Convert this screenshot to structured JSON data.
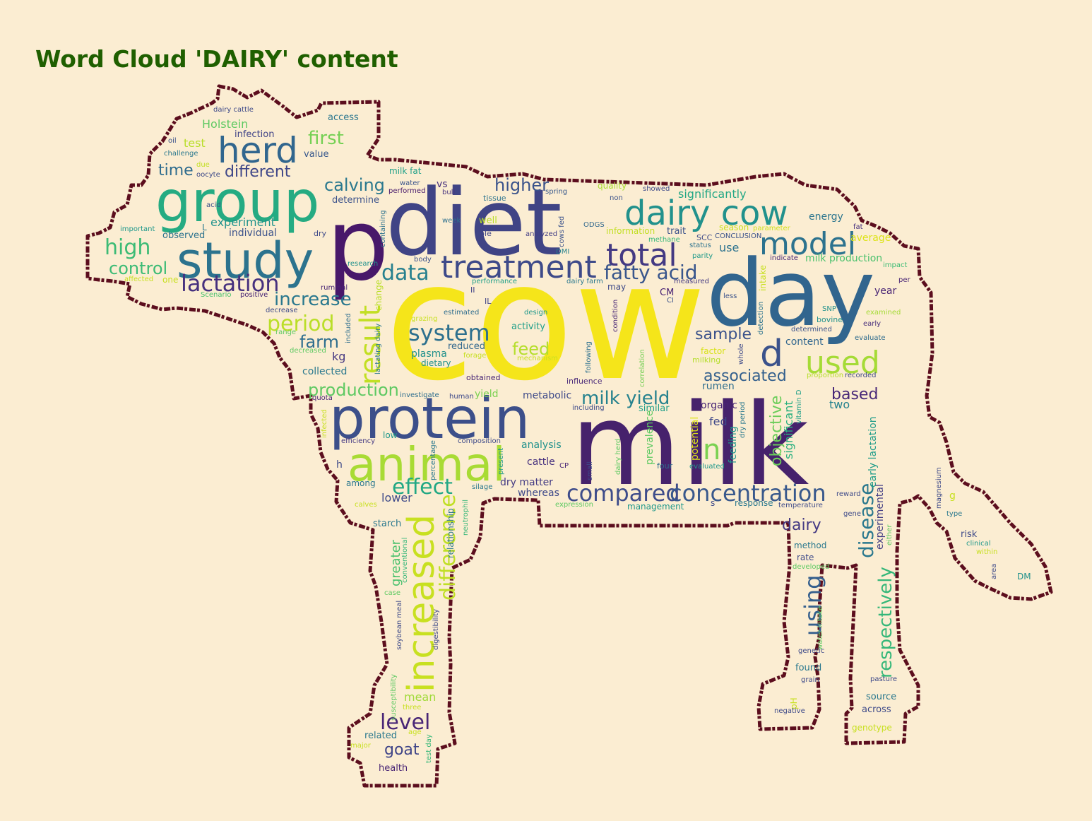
{
  "title": "Word Cloud 'DAIRY' content",
  "colors": {
    "background": "#FBEDD2",
    "title": "#1F5F00",
    "outline": "#5C0E1E",
    "palette": "viridis"
  },
  "words": [
    {
      "text": "cow",
      "color": "#F5E51A"
    },
    {
      "text": "milk",
      "color": "#46226C"
    },
    {
      "text": "diet",
      "color": "#404485"
    },
    {
      "text": "day",
      "color": "#31658E"
    },
    {
      "text": "p",
      "color": "#48186A"
    },
    {
      "text": "protein",
      "color": "#3C4F8A"
    },
    {
      "text": "group",
      "color": "#25AB82"
    },
    {
      "text": "study",
      "color": "#2C738E"
    },
    {
      "text": "animal",
      "color": "#A8DB34"
    },
    {
      "text": "treatment",
      "color": "#3E4A89"
    },
    {
      "text": "dairy cow",
      "color": "#21918C"
    },
    {
      "text": "increased",
      "color": "#C8E020"
    },
    {
      "text": "total",
      "color": "#443A83"
    },
    {
      "text": "model",
      "color": "#2C728E"
    },
    {
      "text": "result",
      "color": "#C2DF23"
    },
    {
      "text": "herd",
      "color": "#31668E"
    },
    {
      "text": "d",
      "color": "#3B528B"
    },
    {
      "text": "used",
      "color": "#A5DB36"
    },
    {
      "text": "compared",
      "color": "#3E4C8A"
    },
    {
      "text": "concentration",
      "color": "#38588C"
    },
    {
      "text": "system",
      "color": "#2D708E"
    },
    {
      "text": "lactation",
      "color": "#46307E"
    },
    {
      "text": "effect",
      "color": "#22A884"
    },
    {
      "text": "data",
      "color": "#27808E"
    },
    {
      "text": "period",
      "color": "#BADE28"
    },
    {
      "text": "fatty acid",
      "color": "#39568C"
    },
    {
      "text": "level",
      "color": "#482576"
    },
    {
      "text": "n",
      "color": "#7AD151"
    },
    {
      "text": "high",
      "color": "#3CBB75"
    },
    {
      "text": "increase",
      "color": "#2A788E"
    },
    {
      "text": "milk yield",
      "color": "#26828E"
    },
    {
      "text": "difference",
      "color": "#C0DF25"
    },
    {
      "text": "respectively",
      "color": "#35B779"
    },
    {
      "text": "using",
      "color": "#355F8D"
    },
    {
      "text": "disease",
      "color": "#2A788E"
    },
    {
      "text": "production",
      "color": "#5EC962"
    },
    {
      "text": "calving",
      "color": "#2A788E"
    },
    {
      "text": "control",
      "color": "#3CBB75"
    },
    {
      "text": "time",
      "color": "#2F6C8E"
    },
    {
      "text": "different",
      "color": "#3F4788"
    },
    {
      "text": "first",
      "color": "#75D054"
    },
    {
      "text": "higher",
      "color": "#3A538B"
    },
    {
      "text": "sample",
      "color": "#3B528B"
    },
    {
      "text": "farm",
      "color": "#2E6E8E"
    },
    {
      "text": "feed",
      "color": "#B5DE2B"
    },
    {
      "text": "dairy",
      "color": "#443983"
    },
    {
      "text": "associated",
      "color": "#34608D"
    },
    {
      "text": "based",
      "color": "#482878"
    },
    {
      "text": "objective",
      "color": "#6CCD5A"
    },
    {
      "text": "significant",
      "color": "#2BB07F"
    },
    {
      "text": "goat",
      "color": "#404588"
    },
    {
      "text": "mean",
      "color": "#A0DA39"
    },
    {
      "text": "greater",
      "color": "#4AC16D"
    },
    {
      "text": "significantly",
      "color": "#22A785"
    },
    {
      "text": "Holstein",
      "color": "#5EC962"
    },
    {
      "text": "experiment",
      "color": "#20928C"
    },
    {
      "text": "early lactation",
      "color": "#1E9C89"
    },
    {
      "text": "experimental",
      "color": "#433E85"
    },
    {
      "text": "analysis",
      "color": "#21918C"
    },
    {
      "text": "cattle",
      "color": "#46307E"
    },
    {
      "text": "lower",
      "color": "#3E4A89"
    },
    {
      "text": "dry matter",
      "color": "#443B84"
    },
    {
      "text": "whereas",
      "color": "#3E4989"
    },
    {
      "text": "use",
      "color": "#2C728E"
    },
    {
      "text": "rumen",
      "color": "#2E6D8E"
    },
    {
      "text": "organic",
      "color": "#482475"
    },
    {
      "text": "fed",
      "color": "#3F4889"
    },
    {
      "text": "feeding",
      "color": "#1F988B"
    },
    {
      "text": "potential",
      "color": "#DDE318"
    },
    {
      "text": "prevalence",
      "color": "#5EC962"
    },
    {
      "text": "two",
      "color": "#26828E"
    },
    {
      "text": "content",
      "color": "#31668E"
    },
    {
      "text": "energy",
      "color": "#2B758E"
    },
    {
      "text": "average",
      "color": "#DDE318"
    },
    {
      "text": "milk production",
      "color": "#4AC16D"
    },
    {
      "text": "year",
      "color": "#482475"
    },
    {
      "text": "collected",
      "color": "#2A788E"
    },
    {
      "text": "production_kg",
      "label": "kg",
      "color": "#453781"
    },
    {
      "text": "plasma",
      "color": "#21918C"
    },
    {
      "text": "dietary",
      "color": "#21918C"
    },
    {
      "text": "reduced",
      "color": "#31688E"
    },
    {
      "text": "activity",
      "color": "#1F9E89"
    },
    {
      "text": "metabolic",
      "color": "#3E4A89"
    },
    {
      "text": "yield",
      "color": "#7AD151"
    },
    {
      "text": "similar",
      "color": "#1F9E89"
    },
    {
      "text": "individual",
      "color": "#3B528B"
    },
    {
      "text": "observed",
      "color": "#2C728E"
    },
    {
      "text": "access",
      "color": "#2A768E"
    },
    {
      "text": "infection",
      "color": "#414487"
    },
    {
      "text": "value",
      "color": "#38588C"
    },
    {
      "text": "test",
      "color": "#B8DE29"
    },
    {
      "text": "determine",
      "color": "#3B528B"
    },
    {
      "text": "quality",
      "color": "#AADC32"
    },
    {
      "text": "showed",
      "color": "#3E4A89"
    },
    {
      "text": "milk fat",
      "color": "#1FA088"
    },
    {
      "text": "water",
      "color": "#3A548C"
    },
    {
      "text": "performed",
      "color": "#481A6C"
    },
    {
      "text": "vs",
      "color": "#472F7D"
    },
    {
      "text": "bull",
      "color": "#46327E"
    },
    {
      "text": "tissue",
      "color": "#2C738E"
    },
    {
      "text": "spring",
      "color": "#38598C"
    },
    {
      "text": "non",
      "color": "#3B528B"
    },
    {
      "text": "well",
      "color": "#B8DE29"
    },
    {
      "text": "week",
      "color": "#2D708E"
    },
    {
      "text": "role",
      "color": "#404688"
    },
    {
      "text": "analyzed",
      "color": "#433E85"
    },
    {
      "text": "information",
      "color": "#C2DF23"
    },
    {
      "text": "trait",
      "color": "#3B528B"
    },
    {
      "text": "season",
      "color": "#C8E020"
    },
    {
      "text": "parameter",
      "color": "#D0E11C"
    },
    {
      "text": "fat",
      "color": "#46307E"
    },
    {
      "text": "SCC",
      "color": "#3E4A89"
    },
    {
      "text": "CONCLUSION",
      "color": "#3B528B"
    },
    {
      "text": "status",
      "color": "#2C728E"
    },
    {
      "text": "parity",
      "color": "#1F9A8A"
    },
    {
      "text": "methane",
      "color": "#35B779"
    },
    {
      "text": "indicate",
      "color": "#482878"
    },
    {
      "text": "impact",
      "color": "#3CBB75"
    },
    {
      "text": "measured",
      "color": "#443A83"
    },
    {
      "text": "may",
      "color": "#3E4A89"
    },
    {
      "text": "dairy farm",
      "color": "#2A788E"
    },
    {
      "text": "performance",
      "color": "#1F9E89"
    },
    {
      "text": "CM",
      "color": "#482173"
    },
    {
      "text": "CI",
      "color": "#3B528B"
    },
    {
      "text": "less",
      "color": "#3B528B"
    },
    {
      "text": "per",
      "color": "#482475"
    },
    {
      "text": "SNP",
      "color": "#21918C"
    },
    {
      "text": "bovine",
      "color": "#21918C"
    },
    {
      "text": "examined",
      "color": "#A5DB36"
    },
    {
      "text": "early",
      "color": "#472D7B"
    },
    {
      "text": "evaluate",
      "color": "#2F6C8E"
    },
    {
      "text": "determined",
      "color": "#3B528B"
    },
    {
      "text": "factor",
      "color": "#D8E219"
    },
    {
      "text": "milking",
      "color": "#B5DE2B"
    },
    {
      "text": "recorded",
      "color": "#3E4A89"
    },
    {
      "text": "proportion",
      "color": "#B5DE2B"
    },
    {
      "text": "research",
      "color": "#21918C"
    },
    {
      "text": "body",
      "color": "#3B528B"
    },
    {
      "text": "containing",
      "color": "#2C728E"
    },
    {
      "text": "ODGS",
      "color": "#31688E"
    },
    {
      "text": "DMI",
      "color": "#26828E"
    },
    {
      "text": "cows fed",
      "color": "#3B528B"
    },
    {
      "text": "ruminal",
      "color": "#482475"
    },
    {
      "text": "II",
      "color": "#414487"
    },
    {
      "text": "IL",
      "color": "#414487"
    },
    {
      "text": "change",
      "color": "#BADE28"
    },
    {
      "text": "included",
      "color": "#2E6E8E"
    },
    {
      "text": "lactating dairy",
      "color": "#2A788E"
    },
    {
      "text": "estimated",
      "color": "#2E6D8E"
    },
    {
      "text": "design",
      "color": "#1F988B"
    },
    {
      "text": "grazing",
      "color": "#C8E020"
    },
    {
      "text": "forage",
      "color": "#C8E020"
    },
    {
      "text": "mechanism",
      "color": "#C8E020"
    },
    {
      "text": "condition",
      "color": "#482576"
    },
    {
      "text": "intake",
      "color": "#C8E020"
    },
    {
      "text": "detection",
      "color": "#2C738E"
    },
    {
      "text": "correlation",
      "color": "#75D054"
    },
    {
      "text": "following",
      "color": "#2D708E"
    },
    {
      "text": "influence",
      "color": "#482878"
    },
    {
      "text": "obtained",
      "color": "#482576"
    },
    {
      "text": "investigate",
      "color": "#2E6E8E"
    },
    {
      "text": "human",
      "color": "#3E4A89"
    },
    {
      "text": "including",
      "color": "#3E4A89"
    },
    {
      "text": "whole",
      "color": "#3E4A89"
    },
    {
      "text": "dry period",
      "color": "#2A788E"
    },
    {
      "text": "vitamin D",
      "color": "#1FA088"
    },
    {
      "text": "acid",
      "color": "#3B528B"
    },
    {
      "text": "oil",
      "color": "#3B528B"
    },
    {
      "text": "challenge",
      "color": "#2A788E"
    },
    {
      "text": "due",
      "color": "#C2DF23"
    },
    {
      "text": "oocyte",
      "color": "#3E4A89"
    },
    {
      "text": "important",
      "color": "#1F988B"
    },
    {
      "text": "L",
      "color": "#2A788E"
    },
    {
      "text": "dry",
      "color": "#3E4A89"
    },
    {
      "text": "affected",
      "color": "#C8E020"
    },
    {
      "text": "one",
      "color": "#C8E020"
    },
    {
      "text": "Scenario",
      "color": "#4AC16D"
    },
    {
      "text": "positive",
      "color": "#482475"
    },
    {
      "text": "decrease",
      "color": "#3E4A89"
    },
    {
      "text": "range",
      "color": "#5EC962"
    },
    {
      "text": "decreased",
      "color": "#5EC962"
    },
    {
      "text": "quota",
      "color": "#482475"
    },
    {
      "text": "dairy cattle",
      "color": "#3E4A89"
    },
    {
      "text": "infected",
      "color": "#C8E020"
    },
    {
      "text": "efficiency",
      "color": "#443983"
    },
    {
      "text": "low",
      "color": "#1F988B"
    },
    {
      "text": "h",
      "color": "#3E4A89"
    },
    {
      "text": "among",
      "color": "#2A788E"
    },
    {
      "text": "calves",
      "color": "#C8E020"
    },
    {
      "text": "starch",
      "color": "#2A788E"
    },
    {
      "text": "composition",
      "color": "#3E4A89"
    },
    {
      "text": "percentage",
      "color": "#2A788E"
    },
    {
      "text": "present",
      "color": "#1F988B"
    },
    {
      "text": "silage",
      "color": "#2A788E"
    },
    {
      "text": "expression",
      "color": "#5EC962"
    },
    {
      "text": "management",
      "color": "#1F988B"
    },
    {
      "text": "CP",
      "color": "#482475"
    },
    {
      "text": "small",
      "color": "#3E4A89"
    },
    {
      "text": "dairy herd",
      "color": "#5EC962"
    },
    {
      "text": "four",
      "color": "#2E6E8E"
    },
    {
      "text": "evaluated",
      "color": "#1F988B"
    },
    {
      "text": "response",
      "color": "#2A788E"
    },
    {
      "text": "temperature",
      "color": "#3E4A89"
    },
    {
      "text": "reward",
      "color": "#3E4A89"
    },
    {
      "text": "gene",
      "color": "#3E4A89"
    },
    {
      "text": "magnesium",
      "color": "#3E4A89"
    },
    {
      "text": "type",
      "color": "#2A788E"
    },
    {
      "text": "g",
      "color": "#C8E020"
    },
    {
      "text": "risk",
      "color": "#3E4A89"
    },
    {
      "text": "clinical",
      "color": "#1F988B"
    },
    {
      "text": "within",
      "color": "#C8E020"
    },
    {
      "text": "area",
      "color": "#3E4A89"
    },
    {
      "text": "DM",
      "color": "#21918C"
    },
    {
      "text": "either",
      "color": "#5EC962"
    },
    {
      "text": "method",
      "color": "#2A788E"
    },
    {
      "text": "rate",
      "color": "#3E4A89"
    },
    {
      "text": "developed",
      "color": "#5EC962"
    },
    {
      "text": "relationship",
      "color": "#2A788E"
    },
    {
      "text": "neutrophil",
      "color": "#35B779"
    },
    {
      "text": "conventional",
      "color": "#35B779"
    },
    {
      "text": "case",
      "color": "#5EC962"
    },
    {
      "text": "soybean meal",
      "color": "#3E4A89"
    },
    {
      "text": "digestibility",
      "color": "#3E4A89"
    },
    {
      "text": "susceptibility",
      "color": "#5EC962"
    },
    {
      "text": "three",
      "color": "#C8E020"
    },
    {
      "text": "age",
      "color": "#C8E020"
    },
    {
      "text": "related",
      "color": "#2A788E"
    },
    {
      "text": "test day",
      "color": "#35B779"
    },
    {
      "text": "major",
      "color": "#C8E020"
    },
    {
      "text": "health",
      "color": "#482475"
    },
    {
      "text": "water intake",
      "color": "#5EC962"
    },
    {
      "text": "genetic",
      "color": "#3E4A89"
    },
    {
      "text": "found",
      "color": "#2A788E"
    },
    {
      "text": "grain",
      "color": "#3E4A89"
    },
    {
      "text": "pH",
      "color": "#C8E020"
    },
    {
      "text": "negative",
      "color": "#3E4A89"
    },
    {
      "text": "pasture",
      "color": "#3E4A89"
    },
    {
      "text": "source",
      "color": "#2A788E"
    },
    {
      "text": "across",
      "color": "#3E4A89"
    },
    {
      "text": "genotype",
      "color": "#C8E020"
    },
    {
      "text": "s",
      "color": "#3E4A89"
    }
  ]
}
